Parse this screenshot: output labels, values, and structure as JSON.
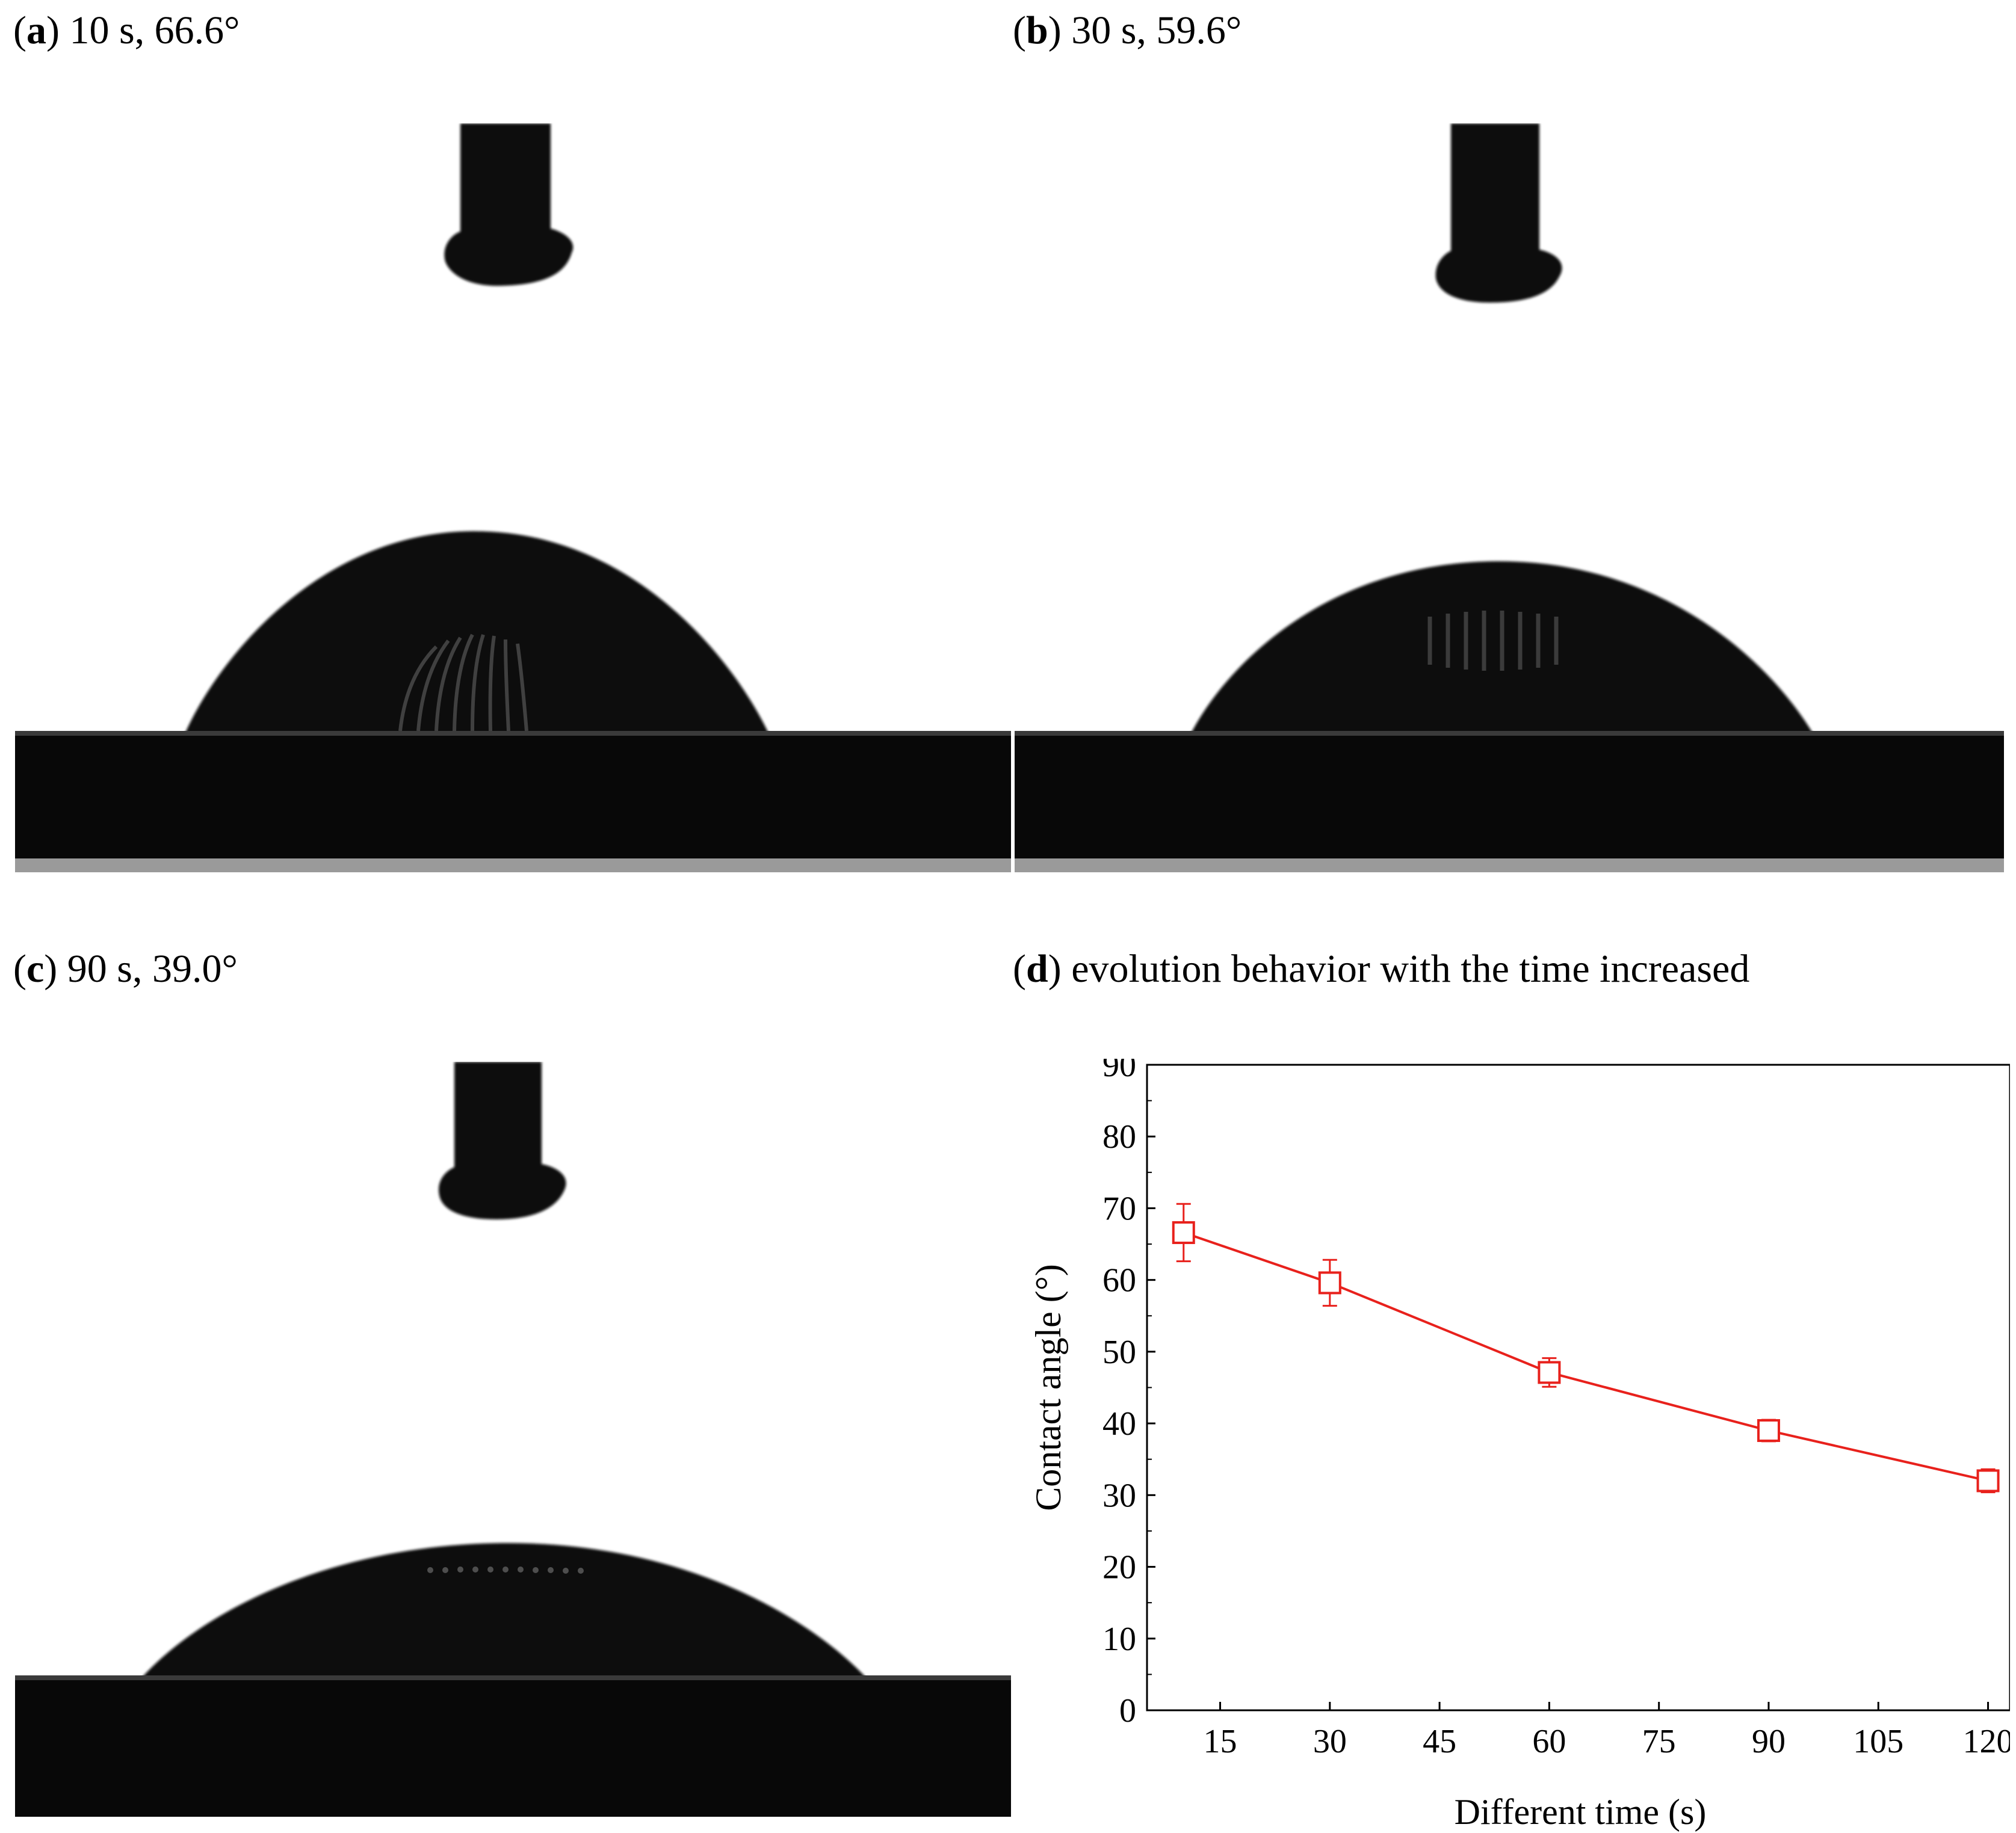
{
  "panels": {
    "a": {
      "letter": "a",
      "caption": " 10 s, 66.6°"
    },
    "b": {
      "letter": "b",
      "caption": " 30 s, 59.6°"
    },
    "c": {
      "letter": "c",
      "caption": " 90 s, 39.0°"
    },
    "d": {
      "letter": "d",
      "caption": " evolution behavior with the time increased"
    }
  },
  "colors": {
    "series": "#e8211c",
    "droplet": "#0b0b0b",
    "substrate": "#080808"
  },
  "chart_data": {
    "type": "line",
    "title": "",
    "xlabel": "Different time (s)",
    "ylabel": "Contact angle (°)",
    "xlim": [
      5,
      123
    ],
    "ylim": [
      0,
      90
    ],
    "xticks": [
      15,
      30,
      45,
      60,
      75,
      90,
      105,
      120
    ],
    "yticks": [
      0,
      10,
      20,
      30,
      40,
      50,
      60,
      70,
      80,
      90
    ],
    "grid": false,
    "marker": "open-square",
    "series": [
      {
        "x": [
          10,
          30,
          60,
          90,
          120
        ],
        "y": [
          66.6,
          59.6,
          47.1,
          39.0,
          32.0
        ],
        "error": [
          4.0,
          3.2,
          2.0,
          1.5,
          1.6
        ]
      }
    ]
  }
}
